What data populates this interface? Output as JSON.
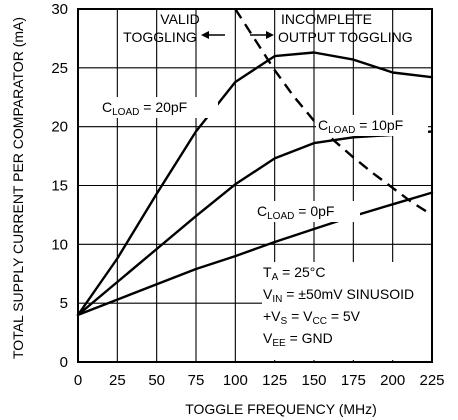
{
  "chart_data": {
    "type": "line",
    "xlabel": "TOGGLE FREQUENCY (MHz)",
    "ylabel": "TOTAL SUPPLY CURRENT PER COMPARATOR (mA)",
    "xlim": [
      0,
      225
    ],
    "ylim": [
      0,
      30
    ],
    "xticks": [
      0,
      25,
      50,
      75,
      100,
      125,
      150,
      175,
      200,
      225
    ],
    "yticks": [
      0,
      5,
      10,
      15,
      20,
      25,
      30
    ],
    "grid": true,
    "series": [
      {
        "name": "CLOAD = 20pF",
        "label_parts": [
          "C",
          "LOAD",
          " = 20pF"
        ],
        "style": "solid",
        "x": [
          0,
          25,
          50,
          75,
          100,
          125,
          150,
          175,
          200,
          225
        ],
        "y": [
          4,
          8.8,
          14.3,
          19.6,
          23.8,
          26,
          26.3,
          25.7,
          24.6,
          24.2
        ]
      },
      {
        "name": "CLOAD = 10pF",
        "label_parts": [
          "C",
          "LOAD",
          " = 10pF"
        ],
        "style": "solid",
        "x": [
          0,
          25,
          50,
          75,
          100,
          125,
          150,
          175,
          200,
          225
        ],
        "y": [
          4,
          6.8,
          9.6,
          12.4,
          15.1,
          17.3,
          18.6,
          19.1,
          19.3,
          19.6
        ]
      },
      {
        "name": "CLOAD = 0pF",
        "label_parts": [
          "C",
          "LOAD",
          " = 0pF"
        ],
        "style": "solid",
        "x": [
          0,
          25,
          50,
          75,
          100,
          125,
          150,
          175,
          200,
          225
        ],
        "y": [
          4,
          5.3,
          6.6,
          7.9,
          9,
          10.2,
          11.3,
          12.4,
          13.4,
          14.4
        ]
      },
      {
        "name": "boundary",
        "style": "dashed",
        "x": [
          100,
          112,
          125,
          137,
          150,
          162,
          175,
          187,
          200,
          212,
          225
        ],
        "y": [
          30,
          27.5,
          24.8,
          22.6,
          20.5,
          18.9,
          17.4,
          16.1,
          14.8,
          13.6,
          12.5
        ]
      }
    ],
    "annotations": {
      "valid_line1": "VALID",
      "valid_line2": "TOGGLING",
      "incomplete_line1": "INCOMPLETE",
      "incomplete_line2": "OUTPUT TOGGLING",
      "conditions": [
        [
          "T",
          "A",
          " = 25°C"
        ],
        [
          "V",
          "IN",
          " = ±50mV SINUSOID"
        ],
        [
          "+V",
          "S",
          " = V",
          "CC",
          " = 5V"
        ],
        [
          "V",
          "EE",
          " = GND"
        ]
      ]
    }
  }
}
